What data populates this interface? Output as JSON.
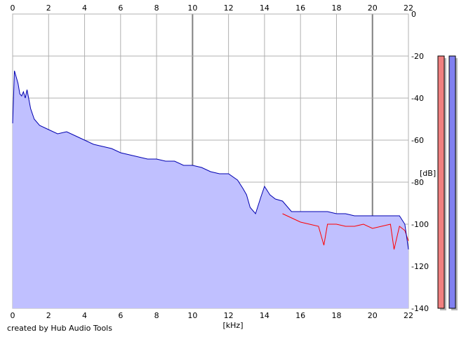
{
  "chart_data": {
    "type": "area",
    "xlabel": "[kHz]",
    "ylabel": "[dB]",
    "xlim": [
      0,
      22
    ],
    "ylim": [
      -140,
      0
    ],
    "x_ticks": [
      0,
      2,
      4,
      6,
      8,
      10,
      12,
      14,
      16,
      18,
      20,
      22
    ],
    "y_ticks": [
      0,
      -20,
      -40,
      -60,
      -80,
      -100,
      -120,
      -140
    ],
    "grid": true,
    "series": [
      {
        "color": "#0000b0",
        "fill": "#c0c0ff",
        "x": [
          0,
          0.1,
          0.2,
          0.3,
          0.4,
          0.5,
          0.6,
          0.7,
          0.8,
          1.0,
          1.2,
          1.5,
          2.0,
          2.5,
          3.0,
          3.5,
          4.0,
          4.5,
          5.0,
          5.5,
          6.0,
          6.5,
          7.0,
          7.5,
          8.0,
          8.5,
          9.0,
          9.5,
          10.0,
          10.5,
          11.0,
          11.5,
          12.0,
          12.5,
          12.8,
          13.0,
          13.2,
          13.5,
          13.8,
          14.0,
          14.3,
          14.6,
          15.0,
          15.5,
          16.0,
          16.5,
          17.0,
          17.5,
          18.0,
          18.5,
          19.0,
          19.5,
          20.0,
          20.5,
          21.0,
          21.5,
          21.8,
          22.0
        ],
        "values": [
          -52,
          -27,
          -30,
          -33,
          -38,
          -39,
          -37,
          -40,
          -36,
          -45,
          -50,
          -53,
          -55,
          -57,
          -56,
          -58,
          -60,
          -62,
          -63,
          -64,
          -66,
          -67,
          -68,
          -69,
          -69,
          -70,
          -70,
          -72,
          -72,
          -73,
          -75,
          -76,
          -76,
          -79,
          -83,
          -86,
          -92,
          -95,
          -87,
          -82,
          -86,
          -88,
          -89,
          -94,
          -94,
          -94,
          -94,
          -94,
          -95,
          -95,
          -96,
          -96,
          -96,
          -96,
          -96,
          -96,
          -100,
          -112
        ]
      },
      {
        "color": "#ff0000",
        "x": [
          15.0,
          15.5,
          16.0,
          16.5,
          17.0,
          17.3,
          17.5,
          18.0,
          18.5,
          19.0,
          19.5,
          20.0,
          20.5,
          21.0,
          21.2,
          21.5,
          21.8,
          22.0
        ],
        "values": [
          -95,
          -97,
          -99,
          -100,
          -101,
          -110,
          -100,
          -100,
          -101,
          -101,
          -100,
          -102,
          -101,
          -100,
          -112,
          -101,
          -103,
          -108
        ]
      }
    ],
    "level_meters": [
      {
        "color": "#f08080",
        "level": 0.95
      },
      {
        "color": "#8080f0",
        "level": 0.95
      }
    ]
  },
  "footer": {
    "credit": "created by Hub Audio Tools"
  }
}
